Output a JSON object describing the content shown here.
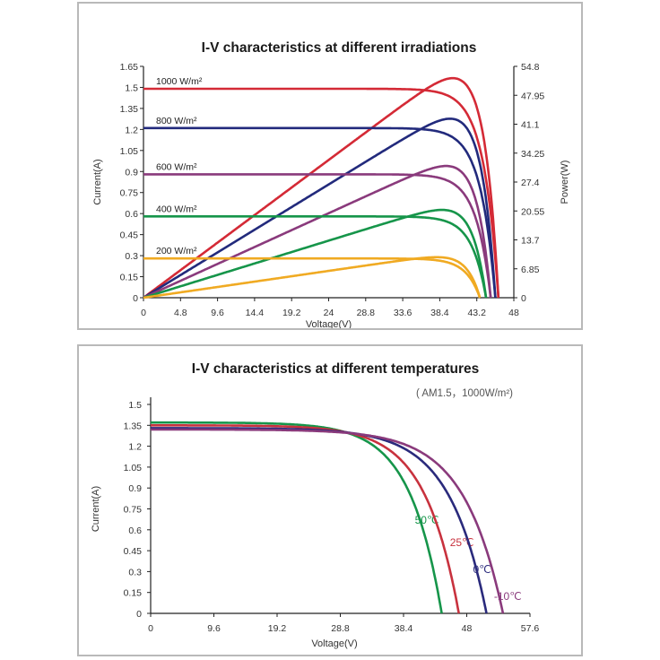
{
  "chart_data": [
    {
      "type": "line",
      "title": "I-V characteristics at different irradiations",
      "xlabel": "Voltage(V)",
      "ylabel": "Current(A)",
      "y2label": "Power(W)",
      "xlim": [
        0,
        48
      ],
      "ylim": [
        0,
        1.65
      ],
      "y2lim": [
        0,
        54.8
      ],
      "xticks": [
        "0",
        "4.8",
        "9.6",
        "14.4",
        "19.2",
        "24",
        "28.8",
        "33.6",
        "38.4",
        "43.2",
        "48"
      ],
      "yticks": [
        "0",
        "0.15",
        "0.3",
        "0.45",
        "0.6",
        "0.75",
        "0.9",
        "1.05",
        "1.2",
        "1.35",
        "1.5",
        "1.65"
      ],
      "y2ticks": [
        "0",
        "6.85",
        "13.7",
        "20.55",
        "27.4",
        "34.25",
        "41.1",
        "47.95",
        "54.8"
      ],
      "grid": false,
      "series": [
        {
          "name": "1000 W/m²",
          "color": "#d42a36",
          "isc": 1.49,
          "voc": 46.0,
          "pmax": 52.0
        },
        {
          "name": "800 W/m²",
          "color": "#222a7c",
          "isc": 1.21,
          "voc": 45.6,
          "pmax": 42.4
        },
        {
          "name": "600 W/m²",
          "color": "#8a3a7c",
          "isc": 0.88,
          "voc": 45.0,
          "pmax": 31.2
        },
        {
          "name": "400 W/m²",
          "color": "#16954a",
          "isc": 0.58,
          "voc": 44.4,
          "pmax": 20.8
        },
        {
          "name": "200 W/m²",
          "color": "#f0aa22",
          "isc": 0.28,
          "voc": 43.6,
          "pmax": 9.6
        }
      ]
    },
    {
      "type": "line",
      "title": "I-V characteristics at different temperatures",
      "subtitle": "( AM1.5，1000W/m²)",
      "xlabel": "Voltage(V)",
      "ylabel": "Current(A)",
      "xlim": [
        0,
        57.6
      ],
      "ylim": [
        0,
        1.5
      ],
      "xticks": [
        "0",
        "9.6",
        "19.2",
        "28.8",
        "38.4",
        "48",
        "57.6"
      ],
      "yticks": [
        "0",
        "0.15",
        "0.3",
        "0.45",
        "0.6",
        "0.75",
        "0.9",
        "1.05",
        "1.2",
        "1.35",
        "1.5"
      ],
      "grid": false,
      "series": [
        {
          "name": "50℃",
          "color": "#16954a",
          "isc": 1.37,
          "voc": 44.2
        },
        {
          "name": "25℃",
          "color": "#c8323e",
          "isc": 1.35,
          "voc": 46.8
        },
        {
          "name": "0℃",
          "color": "#2a2a7c",
          "isc": 1.33,
          "voc": 51.0
        },
        {
          "name": "-10℃",
          "color": "#8a3a7c",
          "isc": 1.32,
          "voc": 53.5
        }
      ]
    }
  ]
}
